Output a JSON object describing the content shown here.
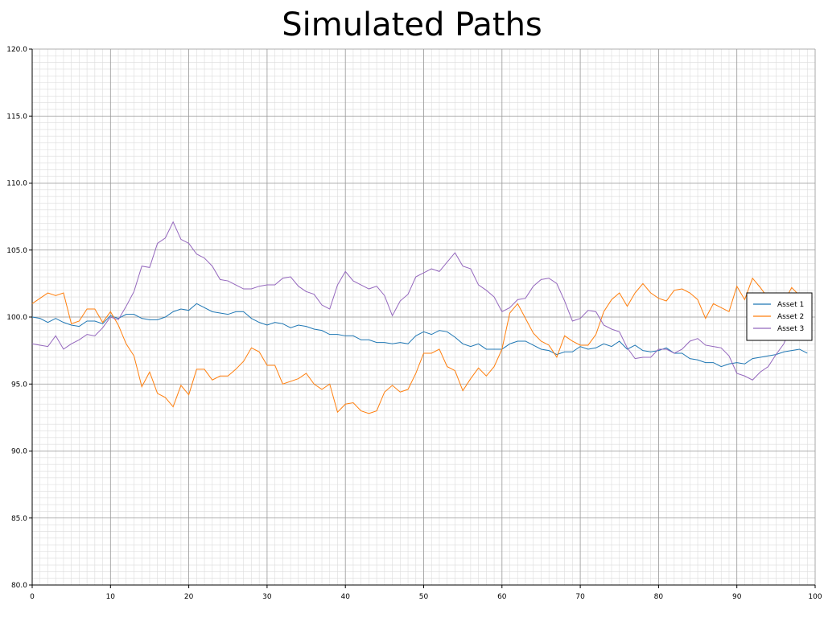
{
  "chart_data": {
    "type": "line",
    "title": "Simulated Paths",
    "xlabel": "",
    "ylabel": "",
    "xlim": [
      0,
      100
    ],
    "ylim": [
      80,
      120
    ],
    "xticks": [
      0,
      10,
      20,
      30,
      40,
      50,
      60,
      70,
      80,
      90,
      100
    ],
    "yticks": [
      "80.0",
      "85.0",
      "90.0",
      "95.0",
      "100.0",
      "105.0",
      "110.0",
      "115.0",
      "120.0"
    ],
    "grid": true,
    "legend_position": "right",
    "series": [
      {
        "name": "Asset 1",
        "color": "#1f77b4",
        "values": [
          100.0,
          99.9,
          99.6,
          99.9,
          99.6,
          99.4,
          99.3,
          99.7,
          99.7,
          99.5,
          100.1,
          99.9,
          100.2,
          100.2,
          99.9,
          99.8,
          99.8,
          100.0,
          100.4,
          100.6,
          100.5,
          101.0,
          100.7,
          100.4,
          100.3,
          100.2,
          100.4,
          100.4,
          99.9,
          99.6,
          99.4,
          99.6,
          99.5,
          99.2,
          99.4,
          99.3,
          99.1,
          99.0,
          98.7,
          98.7,
          98.6,
          98.6,
          98.3,
          98.3,
          98.1,
          98.1,
          98.0,
          98.1,
          98.0,
          98.6,
          98.9,
          98.7,
          99.0,
          98.9,
          98.5,
          98.0,
          97.8,
          98.0,
          97.6,
          97.6,
          97.6,
          98.0,
          98.2,
          98.2,
          97.9,
          97.6,
          97.5,
          97.2,
          97.4,
          97.4,
          97.8,
          97.6,
          97.7,
          98.0,
          97.8,
          98.2,
          97.6,
          97.9,
          97.5,
          97.4,
          97.5,
          97.7,
          97.3,
          97.3,
          96.9,
          96.8,
          96.6,
          96.6,
          96.3,
          96.5,
          96.6,
          96.5,
          96.9,
          97.0,
          97.1,
          97.2,
          97.4,
          97.5,
          97.6,
          97.3
        ]
      },
      {
        "name": "Asset 2",
        "color": "#ff7f0e",
        "values": [
          101.0,
          101.4,
          101.8,
          101.6,
          101.8,
          99.5,
          99.7,
          100.6,
          100.6,
          99.6,
          100.4,
          99.4,
          98.0,
          97.1,
          94.8,
          95.9,
          94.3,
          94.0,
          93.3,
          94.9,
          94.2,
          96.1,
          96.1,
          95.3,
          95.6,
          95.6,
          96.1,
          96.7,
          97.7,
          97.4,
          96.4,
          96.4,
          95.0,
          95.2,
          95.4,
          95.8,
          95.0,
          94.6,
          95.0,
          92.9,
          93.5,
          93.6,
          93.0,
          92.8,
          93.0,
          94.4,
          94.9,
          94.4,
          94.6,
          95.8,
          97.3,
          97.3,
          97.6,
          96.3,
          96.0,
          94.5,
          95.4,
          96.2,
          95.6,
          96.3,
          97.6,
          100.3,
          101.0,
          99.9,
          98.8,
          98.2,
          97.9,
          97.0,
          98.6,
          98.2,
          97.9,
          97.9,
          98.7,
          100.4,
          101.3,
          101.8,
          100.8,
          101.8,
          102.5,
          101.8,
          101.4,
          101.2,
          102.0,
          102.1,
          101.8,
          101.3,
          99.9,
          101.0,
          100.7,
          100.4,
          102.3,
          101.3,
          102.9,
          102.2,
          101.4,
          99.9,
          101.1,
          102.2,
          101.6,
          101.4
        ]
      },
      {
        "name": "Asset 3",
        "color": "#9467bd",
        "values": [
          98.0,
          97.9,
          97.8,
          98.6,
          97.6,
          98.0,
          98.3,
          98.7,
          98.6,
          99.2,
          100.0,
          99.8,
          100.8,
          101.9,
          103.8,
          103.7,
          105.5,
          105.9,
          107.1,
          105.8,
          105.5,
          104.7,
          104.4,
          103.8,
          102.8,
          102.7,
          102.4,
          102.1,
          102.1,
          102.3,
          102.4,
          102.4,
          102.9,
          103.0,
          102.3,
          101.9,
          101.7,
          100.9,
          100.6,
          102.4,
          103.4,
          102.7,
          102.4,
          102.1,
          102.3,
          101.6,
          100.1,
          101.2,
          101.7,
          103.0,
          103.3,
          103.6,
          103.4,
          104.1,
          104.8,
          103.8,
          103.6,
          102.4,
          102.0,
          101.5,
          100.4,
          100.7,
          101.3,
          101.4,
          102.3,
          102.8,
          102.9,
          102.5,
          101.2,
          99.7,
          99.9,
          100.5,
          100.4,
          99.4,
          99.1,
          98.9,
          97.7,
          96.9,
          97.0,
          97.0,
          97.6,
          97.6,
          97.3,
          97.6,
          98.2,
          98.4,
          97.9,
          97.8,
          97.7,
          97.1,
          95.8,
          95.6,
          95.3,
          95.9,
          96.3,
          97.2,
          98.0,
          99.4,
          99.6,
          99.7
        ]
      }
    ]
  }
}
